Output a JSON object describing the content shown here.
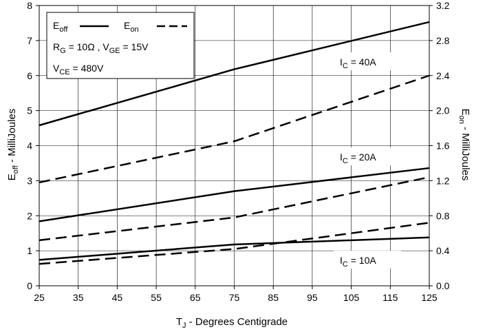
{
  "chart_data": {
    "type": "line",
    "title": "",
    "xlabel": {
      "main": "T",
      "sub": "J",
      "rest": " - Degrees Centigrade"
    },
    "ylabel_left": {
      "main": "E",
      "sub": "off",
      "rest": " - MilliJoules"
    },
    "ylabel_right": {
      "main": "E",
      "sub": "on",
      "rest": " - MilliJoules"
    },
    "x_ticks": [
      25,
      35,
      45,
      55,
      65,
      75,
      85,
      95,
      105,
      115,
      125
    ],
    "y_left_ticks": [
      0,
      1,
      2,
      3,
      4,
      5,
      6,
      7,
      8
    ],
    "y_right_ticks": [
      "0.0",
      "0.4",
      "0.8",
      "1.2",
      "1.6",
      "2.0",
      "2.4",
      "2.8",
      "3.2"
    ],
    "xlim": [
      25,
      125
    ],
    "ylim_left": [
      0,
      8
    ],
    "ylim_right": [
      0,
      3.2
    ],
    "grid": true,
    "legend_position": "top-left",
    "legend": {
      "eoff": {
        "main": "E",
        "sub": "off"
      },
      "eon": {
        "main": "E",
        "sub": "on"
      },
      "line2": {
        "p1": "R",
        "p1sub": "G",
        "p1rest": " = 10Ω , ",
        "p2": "V",
        "p2sub": "GE",
        "p2rest": " = 15V"
      },
      "line3": {
        "p1": "V",
        "p1sub": "CE",
        "p1rest": " = 480V"
      }
    },
    "annotations": [
      {
        "main": "I",
        "sub": "C",
        "rest": " = 40A"
      },
      {
        "main": "I",
        "sub": "C",
        "rest": " = 20A"
      },
      {
        "main": "I",
        "sub": "C",
        "rest": " = 10A"
      }
    ],
    "series": [
      {
        "group": "IC = 40A",
        "kind": "Eoff",
        "axis": "left",
        "style": "solid",
        "x": [
          25,
          75,
          125
        ],
        "y": [
          4.58,
          6.18,
          7.53
        ]
      },
      {
        "group": "IC = 40A",
        "kind": "Eon",
        "axis": "right",
        "style": "dashed",
        "x": [
          25,
          75,
          125
        ],
        "y": [
          1.18,
          1.65,
          2.4
        ]
      },
      {
        "group": "IC = 20A",
        "kind": "Eoff",
        "axis": "left",
        "style": "solid",
        "x": [
          25,
          75,
          125
        ],
        "y": [
          1.84,
          2.7,
          3.36
        ]
      },
      {
        "group": "IC = 20A",
        "kind": "Eon",
        "axis": "right",
        "style": "dashed",
        "x": [
          25,
          75,
          125
        ],
        "y": [
          0.52,
          0.78,
          1.24
        ]
      },
      {
        "group": "IC = 10A",
        "kind": "Eoff",
        "axis": "left",
        "style": "solid",
        "x": [
          25,
          75,
          125
        ],
        "y": [
          0.74,
          1.18,
          1.38
        ]
      },
      {
        "group": "IC = 10A",
        "kind": "Eon",
        "axis": "right",
        "style": "dashed",
        "x": [
          25,
          75,
          125
        ],
        "y": [
          0.25,
          0.42,
          0.72
        ]
      }
    ]
  }
}
